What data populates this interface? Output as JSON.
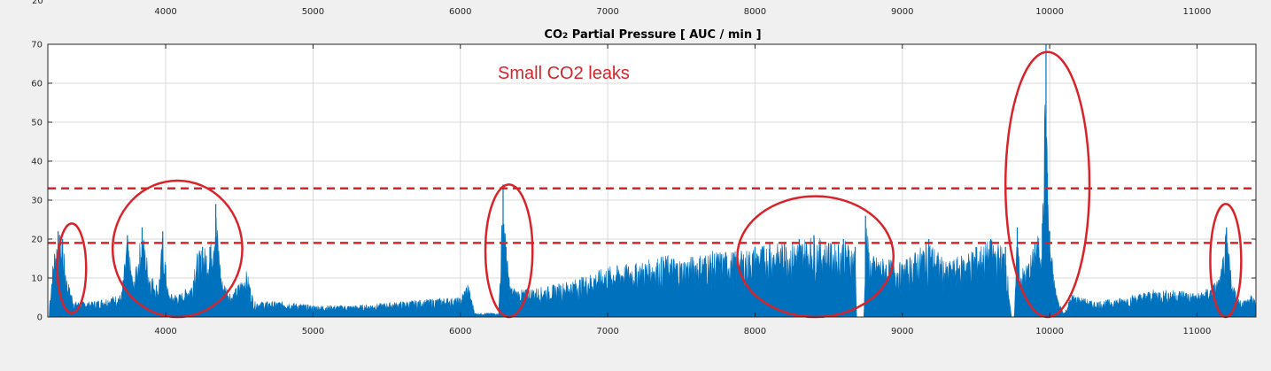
{
  "top_axis": {
    "ticks": [
      "4000",
      "5000",
      "6000",
      "7000",
      "8000",
      "9000",
      "10000",
      "11000"
    ],
    "corner_label": "20"
  },
  "annotation": {
    "text": "Small CO2 leaks",
    "color": "#d9232a"
  },
  "colors": {
    "series": "#0072bd",
    "annotation": "#d9232a",
    "grid": "#d9d9d9"
  },
  "chart_data": {
    "type": "area",
    "title_main": "CO",
    "title_sub": "2",
    "title_rest": " Partial Pressure [ AUC / min ]",
    "xlim": [
      3200,
      11400
    ],
    "ylim": [
      0,
      70
    ],
    "x_ticks": [
      4000,
      5000,
      6000,
      7000,
      8000,
      9000,
      10000,
      11000
    ],
    "y_ticks": [
      0,
      10,
      20,
      30,
      40,
      50,
      60,
      70
    ],
    "grid": true,
    "thresholds": [
      19,
      33
    ],
    "envelope": [
      [
        3210,
        3
      ],
      [
        3240,
        17
      ],
      [
        3270,
        22
      ],
      [
        3300,
        20
      ],
      [
        3330,
        10
      ],
      [
        3380,
        4
      ],
      [
        3500,
        4
      ],
      [
        3600,
        5
      ],
      [
        3700,
        6
      ],
      [
        3740,
        21
      ],
      [
        3780,
        9
      ],
      [
        3840,
        23
      ],
      [
        3890,
        12
      ],
      [
        3950,
        8
      ],
      [
        3980,
        22
      ],
      [
        4020,
        6
      ],
      [
        4100,
        6
      ],
      [
        4180,
        9
      ],
      [
        4200,
        16
      ],
      [
        4250,
        18
      ],
      [
        4300,
        18
      ],
      [
        4340,
        29
      ],
      [
        4380,
        10
      ],
      [
        4450,
        6
      ],
      [
        4550,
        12
      ],
      [
        4600,
        4
      ],
      [
        4800,
        4
      ],
      [
        5000,
        3
      ],
      [
        5300,
        3
      ],
      [
        5600,
        4
      ],
      [
        5900,
        5
      ],
      [
        6000,
        5
      ],
      [
        6050,
        9
      ],
      [
        6100,
        1
      ],
      [
        6260,
        1
      ],
      [
        6290,
        34
      ],
      [
        6310,
        18
      ],
      [
        6340,
        8
      ],
      [
        6400,
        7
      ],
      [
        6600,
        8
      ],
      [
        6800,
        10
      ],
      [
        7000,
        13
      ],
      [
        7200,
        14
      ],
      [
        7400,
        16
      ],
      [
        7500,
        15
      ],
      [
        7700,
        17
      ],
      [
        7900,
        17
      ],
      [
        8000,
        18
      ],
      [
        8100,
        19
      ],
      [
        8200,
        19
      ],
      [
        8300,
        20
      ],
      [
        8400,
        21
      ],
      [
        8500,
        19
      ],
      [
        8600,
        20
      ],
      [
        8680,
        18
      ],
      [
        8690,
        0
      ],
      [
        8740,
        0
      ],
      [
        8750,
        26
      ],
      [
        8780,
        16
      ],
      [
        8900,
        15
      ],
      [
        9000,
        14
      ],
      [
        9180,
        20
      ],
      [
        9300,
        14
      ],
      [
        9500,
        18
      ],
      [
        9600,
        20
      ],
      [
        9700,
        18
      ],
      [
        9740,
        0
      ],
      [
        9760,
        0
      ],
      [
        9780,
        23
      ],
      [
        9800,
        12
      ],
      [
        9850,
        14
      ],
      [
        9900,
        19
      ],
      [
        9950,
        24
      ],
      [
        9975,
        70
      ],
      [
        9985,
        37
      ],
      [
        10000,
        22
      ],
      [
        10030,
        10
      ],
      [
        10060,
        4
      ],
      [
        10100,
        1
      ],
      [
        10150,
        6
      ],
      [
        10300,
        4
      ],
      [
        10500,
        5
      ],
      [
        10700,
        7
      ],
      [
        10900,
        7
      ],
      [
        11000,
        6
      ],
      [
        11100,
        8
      ],
      [
        11160,
        11
      ],
      [
        11200,
        23
      ],
      [
        11240,
        9
      ],
      [
        11300,
        4
      ],
      [
        11380,
        6
      ],
      [
        11400,
        3
      ]
    ]
  }
}
